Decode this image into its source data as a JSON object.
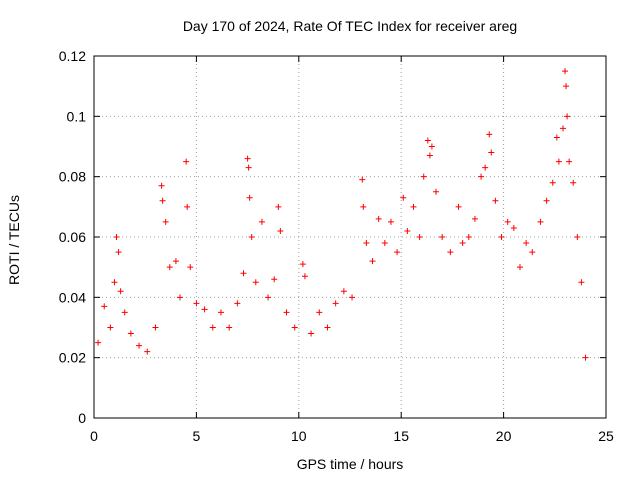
{
  "chart_data": {
    "type": "scatter",
    "title": "Day 170 of 2024, Rate Of TEC Index for receiver areg",
    "xlabel": "GPS time / hours",
    "ylabel": "ROTI / TECUs",
    "xlim": [
      0,
      25
    ],
    "ylim": [
      0,
      0.12
    ],
    "xticks": [
      0,
      5,
      10,
      15,
      20,
      25
    ],
    "yticks": [
      0,
      0.02,
      0.04,
      0.06,
      0.08,
      0.1,
      0.12
    ],
    "xtick_labels": [
      "0",
      "5",
      "10",
      "15",
      "20",
      "25"
    ],
    "ytick_labels": [
      "0",
      "0.02",
      "0.04",
      "0.06",
      "0.08",
      "0.1",
      "0.12"
    ],
    "grid": true,
    "marker": "+",
    "color": "#ff0000",
    "series": [
      {
        "points": [
          [
            0.2,
            0.025
          ],
          [
            0.5,
            0.037
          ],
          [
            0.8,
            0.03
          ],
          [
            1.0,
            0.045
          ],
          [
            1.1,
            0.06
          ],
          [
            1.2,
            0.055
          ],
          [
            1.3,
            0.042
          ],
          [
            1.5,
            0.035
          ],
          [
            1.8,
            0.028
          ],
          [
            2.2,
            0.024
          ],
          [
            2.6,
            0.022
          ],
          [
            3.0,
            0.03
          ],
          [
            3.3,
            0.077
          ],
          [
            3.35,
            0.072
          ],
          [
            3.5,
            0.065
          ],
          [
            3.7,
            0.05
          ],
          [
            4.0,
            0.052
          ],
          [
            4.2,
            0.04
          ],
          [
            4.5,
            0.085
          ],
          [
            4.55,
            0.07
          ],
          [
            4.7,
            0.05
          ],
          [
            5.0,
            0.038
          ],
          [
            5.4,
            0.036
          ],
          [
            5.8,
            0.03
          ],
          [
            6.2,
            0.035
          ],
          [
            6.6,
            0.03
          ],
          [
            7.0,
            0.038
          ],
          [
            7.3,
            0.048
          ],
          [
            7.5,
            0.086
          ],
          [
            7.55,
            0.083
          ],
          [
            7.6,
            0.073
          ],
          [
            7.7,
            0.06
          ],
          [
            7.9,
            0.045
          ],
          [
            8.2,
            0.065
          ],
          [
            8.5,
            0.04
          ],
          [
            8.8,
            0.046
          ],
          [
            9.0,
            0.07
          ],
          [
            9.1,
            0.062
          ],
          [
            9.4,
            0.035
          ],
          [
            9.8,
            0.03
          ],
          [
            10.2,
            0.051
          ],
          [
            10.3,
            0.047
          ],
          [
            10.6,
            0.028
          ],
          [
            11.0,
            0.035
          ],
          [
            11.4,
            0.03
          ],
          [
            11.8,
            0.038
          ],
          [
            12.2,
            0.042
          ],
          [
            12.6,
            0.04
          ],
          [
            13.1,
            0.079
          ],
          [
            13.15,
            0.07
          ],
          [
            13.3,
            0.058
          ],
          [
            13.6,
            0.052
          ],
          [
            13.9,
            0.066
          ],
          [
            14.2,
            0.058
          ],
          [
            14.5,
            0.065
          ],
          [
            14.8,
            0.055
          ],
          [
            15.1,
            0.073
          ],
          [
            15.3,
            0.062
          ],
          [
            15.6,
            0.07
          ],
          [
            15.9,
            0.06
          ],
          [
            16.1,
            0.08
          ],
          [
            16.3,
            0.092
          ],
          [
            16.4,
            0.087
          ],
          [
            16.5,
            0.09
          ],
          [
            16.7,
            0.075
          ],
          [
            17.0,
            0.06
          ],
          [
            17.4,
            0.055
          ],
          [
            17.8,
            0.07
          ],
          [
            18.0,
            0.058
          ],
          [
            18.3,
            0.06
          ],
          [
            18.6,
            0.066
          ],
          [
            18.9,
            0.08
          ],
          [
            19.1,
            0.083
          ],
          [
            19.3,
            0.094
          ],
          [
            19.4,
            0.088
          ],
          [
            19.6,
            0.072
          ],
          [
            19.9,
            0.06
          ],
          [
            20.2,
            0.065
          ],
          [
            20.5,
            0.063
          ],
          [
            20.8,
            0.05
          ],
          [
            21.1,
            0.058
          ],
          [
            21.4,
            0.055
          ],
          [
            21.8,
            0.065
          ],
          [
            22.1,
            0.072
          ],
          [
            22.4,
            0.078
          ],
          [
            22.6,
            0.093
          ],
          [
            22.7,
            0.085
          ],
          [
            22.9,
            0.096
          ],
          [
            23.0,
            0.115
          ],
          [
            23.05,
            0.11
          ],
          [
            23.1,
            0.1
          ],
          [
            23.2,
            0.085
          ],
          [
            23.4,
            0.078
          ],
          [
            23.6,
            0.06
          ],
          [
            23.8,
            0.045
          ],
          [
            24.0,
            0.02
          ]
        ]
      }
    ]
  }
}
